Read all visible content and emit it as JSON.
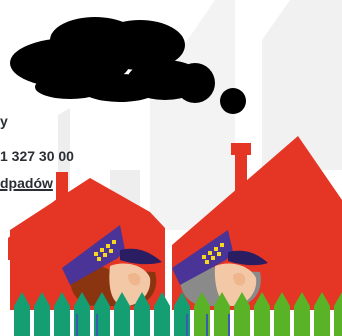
{
  "info": {
    "line1": "y",
    "phone": "1 327 30 00",
    "link_label": "dpadów"
  },
  "colors": {
    "smoke": "#000000",
    "house": "#e53524",
    "cap": "#4b3497",
    "checker": "#f5d81f",
    "fence_teal": "#169e73",
    "fence_green": "#5ab226",
    "backdrop": "#eeeeee"
  },
  "icons": {
    "smoke": "smoke-cloud-icon",
    "houses": "house-icon",
    "guards": "municipal-guard-icon",
    "fence": "fence-icon"
  }
}
